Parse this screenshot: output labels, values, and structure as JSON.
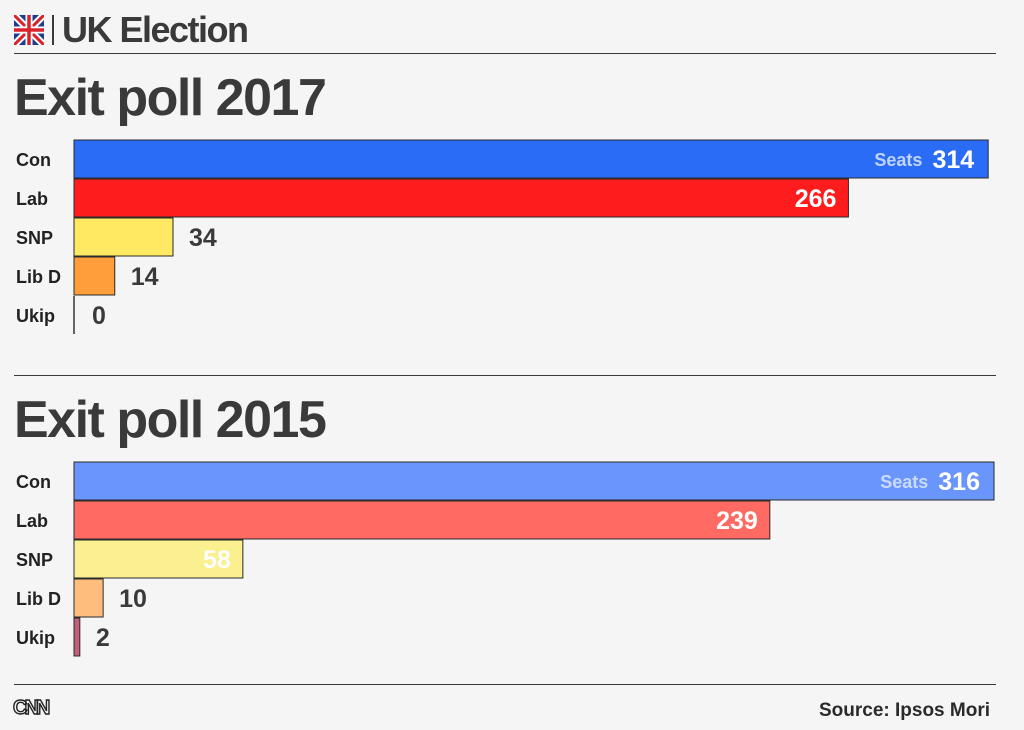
{
  "header": {
    "title": "UK Election",
    "flag_icon": "union-jack-icon"
  },
  "chart_data": [
    {
      "type": "bar",
      "orientation": "horizontal",
      "title": "Exit poll 2017",
      "categories": [
        "Con",
        "Lab",
        "SNP",
        "Lib D",
        "Ukip"
      ],
      "values": [
        314,
        266,
        34,
        14,
        0
      ],
      "colors": [
        "#2a6cf5",
        "#ff1c1c",
        "#ffe963",
        "#ff9e3a",
        "#333333"
      ],
      "value_label_prefix": "Seats",
      "xlim": [
        0,
        316
      ]
    },
    {
      "type": "bar",
      "orientation": "horizontal",
      "title": "Exit poll 2015",
      "categories": [
        "Con",
        "Lab",
        "SNP",
        "Lib D",
        "Ukip"
      ],
      "values": [
        316,
        239,
        58,
        10,
        2
      ],
      "colors": [
        "#6a95fa",
        "#ff6a63",
        "#fbf08f",
        "#ffbd7d",
        "#c2607a"
      ],
      "value_label_prefix": "Seats",
      "xlim": [
        0,
        316
      ]
    }
  ],
  "footer": {
    "logo_text": "CNN",
    "source": "Source: Ipsos Mori"
  }
}
